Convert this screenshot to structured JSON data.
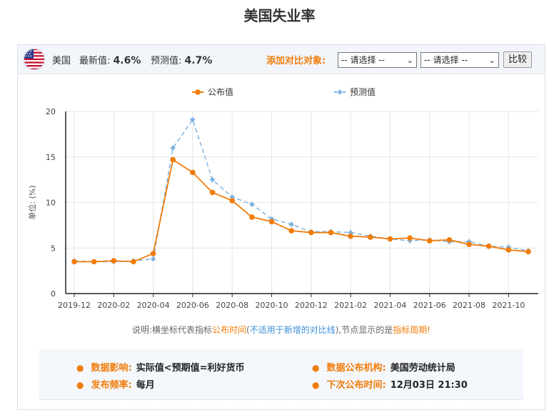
{
  "page": {
    "title": "美国失业率"
  },
  "header": {
    "country": "美国",
    "latest_label": "最新值:",
    "latest_value": "4.6%",
    "forecast_label": "预测值:",
    "forecast_value": "4.7%",
    "compare_label": "添加对比对象:",
    "select1": "-- 请选择 --",
    "select2": "-- 请选择 --",
    "compare_button": "比较",
    "flag_icon": "us-flag-icon"
  },
  "note": {
    "part1": "说明:横坐标代表指标",
    "part2": "公布时间",
    "part3": "(",
    "part4": "不适用于新增的对比线",
    "part5": "),节点显示的是",
    "part6": "指标周期!"
  },
  "info": {
    "impact_label": "数据影响:",
    "impact_value": "实际值<预期值=利好货币",
    "agency_label": "数据公布机构:",
    "agency_value": "美国劳动统计局",
    "freq_label": "发布频率:",
    "freq_value": "每月",
    "next_label": "下次公布时间:",
    "next_value": "12月03日 21:30"
  },
  "chart_data": {
    "type": "line",
    "ylabel": "单位: (%)",
    "ylim": [
      0,
      20
    ],
    "yticks": [
      0,
      5,
      10,
      15,
      20
    ],
    "xtick_labels": [
      "2019-12",
      "2020-02",
      "2020-04",
      "2020-06",
      "2020-08",
      "2020-10",
      "2020-12",
      "2021-02",
      "2021-04",
      "2021-06",
      "2021-08",
      "2021-10"
    ],
    "x": [
      "2019-12",
      "2020-01",
      "2020-02",
      "2020-03",
      "2020-04",
      "2020-05",
      "2020-06",
      "2020-07",
      "2020-08",
      "2020-09",
      "2020-10",
      "2020-11",
      "2020-12",
      "2021-01",
      "2021-02",
      "2021-03",
      "2021-04",
      "2021-05",
      "2021-06",
      "2021-07",
      "2021-08",
      "2021-09",
      "2021-10",
      "2021-11"
    ],
    "grid": true,
    "legend": "top",
    "series": [
      {
        "name": "公布值",
        "color": "#f07c0a",
        "style": "solid",
        "values": [
          3.5,
          3.5,
          3.6,
          3.5,
          4.4,
          14.7,
          13.3,
          11.1,
          10.2,
          8.4,
          7.9,
          6.9,
          6.7,
          6.7,
          6.3,
          6.2,
          6.0,
          6.1,
          5.8,
          5.9,
          5.4,
          5.2,
          4.8,
          4.6
        ]
      },
      {
        "name": "预测值",
        "color": "#7fb3e0",
        "style": "dashed",
        "values": [
          3.6,
          3.5,
          3.5,
          3.6,
          3.8,
          16.0,
          19.1,
          12.5,
          10.6,
          9.8,
          8.2,
          7.6,
          6.8,
          6.8,
          6.7,
          6.3,
          6.0,
          5.8,
          5.9,
          5.7,
          5.7,
          5.2,
          5.1,
          4.7
        ]
      }
    ]
  }
}
